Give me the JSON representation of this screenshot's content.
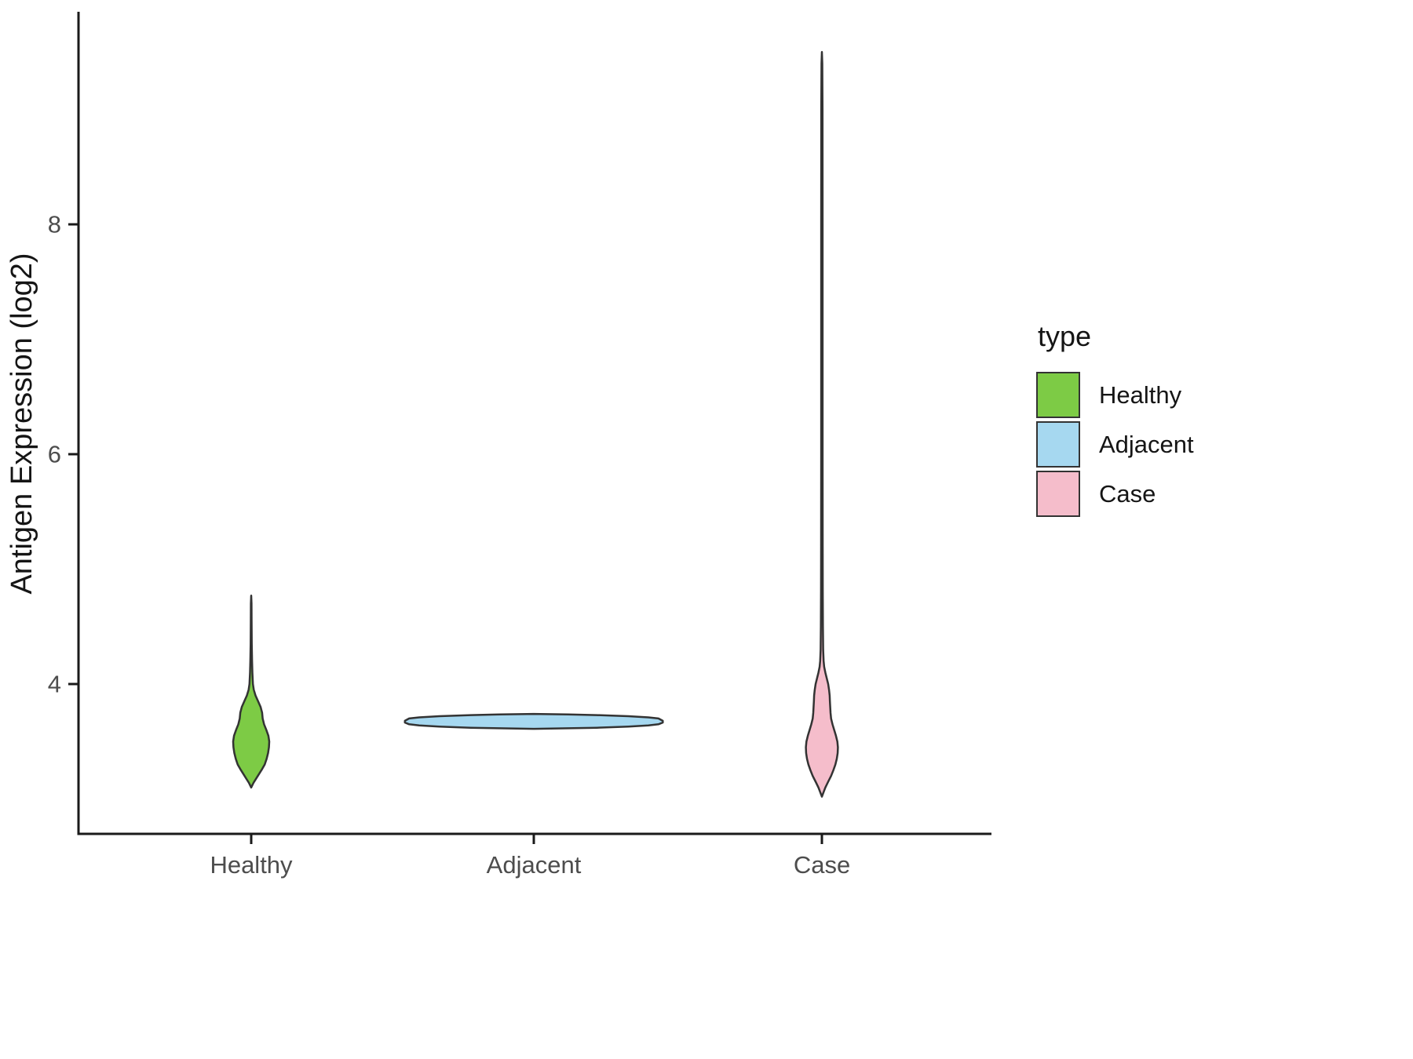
{
  "chart_data": {
    "type": "violin",
    "title": "",
    "xlabel": "",
    "ylabel": "Antigen Expression (log2)",
    "categories": [
      "Healthy",
      "Adjacent",
      "Case"
    ],
    "y_ticks": [
      4,
      6,
      8
    ],
    "ylim": [
      2.7,
      9.9
    ],
    "grid": false,
    "outline_color": "#333333",
    "legend": {
      "title": "type",
      "position": "right",
      "entries": [
        {
          "label": "Healthy",
          "color": "#7DCB45"
        },
        {
          "label": "Adjacent",
          "color": "#A6D8F0"
        },
        {
          "label": "Case",
          "color": "#F5BDCB"
        }
      ]
    },
    "series": [
      {
        "name": "Healthy",
        "color": "#7DCB45",
        "min": 3.1,
        "max": 4.77,
        "peak": 3.5,
        "profile": [
          [
            3.1,
            0.0
          ],
          [
            3.14,
            0.008
          ],
          [
            3.18,
            0.018
          ],
          [
            3.22,
            0.028
          ],
          [
            3.26,
            0.038
          ],
          [
            3.3,
            0.047
          ],
          [
            3.35,
            0.054
          ],
          [
            3.4,
            0.059
          ],
          [
            3.45,
            0.062
          ],
          [
            3.5,
            0.063
          ],
          [
            3.55,
            0.06
          ],
          [
            3.6,
            0.053
          ],
          [
            3.65,
            0.045
          ],
          [
            3.7,
            0.04
          ],
          [
            3.75,
            0.038
          ],
          [
            3.8,
            0.033
          ],
          [
            3.85,
            0.024
          ],
          [
            3.9,
            0.015
          ],
          [
            3.95,
            0.009
          ],
          [
            4.0,
            0.006
          ],
          [
            4.1,
            0.004
          ],
          [
            4.2,
            0.003
          ],
          [
            4.35,
            0.002
          ],
          [
            4.55,
            0.0015
          ],
          [
            4.7,
            0.001
          ],
          [
            4.77,
            0.0
          ]
        ]
      },
      {
        "name": "Adjacent",
        "color": "#A6D8F0",
        "min": 3.61,
        "max": 3.74,
        "peak": 3.67,
        "profile": [
          [
            3.61,
            0.0
          ],
          [
            3.615,
            0.12
          ],
          [
            3.62,
            0.22
          ],
          [
            3.63,
            0.33
          ],
          [
            3.64,
            0.4
          ],
          [
            3.65,
            0.435
          ],
          [
            3.665,
            0.45
          ],
          [
            3.68,
            0.45
          ],
          [
            3.7,
            0.435
          ],
          [
            3.71,
            0.4
          ],
          [
            3.72,
            0.33
          ],
          [
            3.73,
            0.22
          ],
          [
            3.735,
            0.12
          ],
          [
            3.74,
            0.0
          ]
        ]
      },
      {
        "name": "Case",
        "color": "#F5BDCB",
        "min": 3.02,
        "max": 9.5,
        "peak": 3.45,
        "profile": [
          [
            3.02,
            0.0
          ],
          [
            3.06,
            0.006
          ],
          [
            3.1,
            0.012
          ],
          [
            3.15,
            0.022
          ],
          [
            3.2,
            0.032
          ],
          [
            3.25,
            0.04
          ],
          [
            3.3,
            0.047
          ],
          [
            3.35,
            0.052
          ],
          [
            3.4,
            0.055
          ],
          [
            3.45,
            0.056
          ],
          [
            3.5,
            0.054
          ],
          [
            3.55,
            0.049
          ],
          [
            3.6,
            0.043
          ],
          [
            3.65,
            0.037
          ],
          [
            3.7,
            0.032
          ],
          [
            3.75,
            0.03
          ],
          [
            3.8,
            0.029
          ],
          [
            3.85,
            0.028
          ],
          [
            3.9,
            0.027
          ],
          [
            3.95,
            0.025
          ],
          [
            4.0,
            0.022
          ],
          [
            4.05,
            0.017
          ],
          [
            4.1,
            0.012
          ],
          [
            4.15,
            0.008
          ],
          [
            4.2,
            0.006
          ],
          [
            4.3,
            0.0045
          ],
          [
            4.5,
            0.0035
          ],
          [
            4.8,
            0.003
          ],
          [
            5.2,
            0.0028
          ],
          [
            6.0,
            0.0026
          ],
          [
            7.0,
            0.0025
          ],
          [
            8.0,
            0.0024
          ],
          [
            9.0,
            0.0022
          ],
          [
            9.4,
            0.0015
          ],
          [
            9.5,
            0.0
          ]
        ]
      }
    ]
  }
}
